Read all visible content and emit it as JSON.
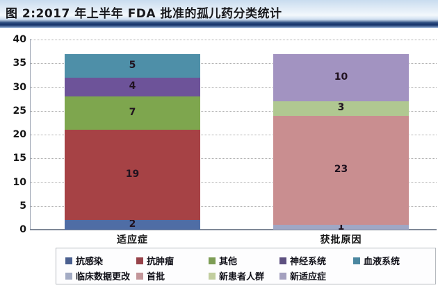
{
  "title": "图 2:2017 年上半年 FDA 批准的孤儿药分类统计",
  "chart_data": {
    "type": "bar",
    "stacked": true,
    "title": "图 2:2017 年上半年 FDA 批准的孤儿药分类统计",
    "categories": [
      "适应症",
      "获批原因"
    ],
    "ylim": [
      0,
      40
    ],
    "ytick_step": 5,
    "grid": "horizontal-dotted",
    "legend_position": "bottom",
    "bars": [
      {
        "category": "适应症",
        "total": 37,
        "segments": [
          {
            "label": "抗感染",
            "value": 2,
            "color": "#4f6da5"
          },
          {
            "label": "抗肿瘤",
            "value": 19,
            "color": "#a64245"
          },
          {
            "label": "其他",
            "value": 7,
            "color": "#7ea64e"
          },
          {
            "label": "神经系统",
            "value": 4,
            "color": "#6d5399"
          },
          {
            "label": "血液系统",
            "value": 5,
            "color": "#4e8fa8"
          }
        ]
      },
      {
        "category": "获批原因",
        "total": 37,
        "segments": [
          {
            "label": "临床数据更改",
            "value": 1,
            "color": "#9fa7c5"
          },
          {
            "label": "首批",
            "value": 23,
            "color": "#c98e90"
          },
          {
            "label": "新患者人群",
            "value": 3,
            "color": "#b0c891"
          },
          {
            "label": "新适应症",
            "value": 10,
            "color": "#a293c1"
          }
        ]
      }
    ],
    "legend": [
      {
        "label": "抗感染",
        "color": "#4a5f8f"
      },
      {
        "label": "抗肿瘤",
        "color": "#97434a"
      },
      {
        "label": "其他",
        "color": "#7d9d55"
      },
      {
        "label": "神经系统",
        "color": "#5d5080"
      },
      {
        "label": "血液系统",
        "color": "#4b87a0"
      },
      {
        "label": "临床数据更改",
        "color": "#a3abc4"
      },
      {
        "label": "首批",
        "color": "#c3969a"
      },
      {
        "label": "新患者人群",
        "color": "#c2ce9f"
      },
      {
        "label": "新适应症",
        "color": "#a4a0bf"
      }
    ]
  }
}
